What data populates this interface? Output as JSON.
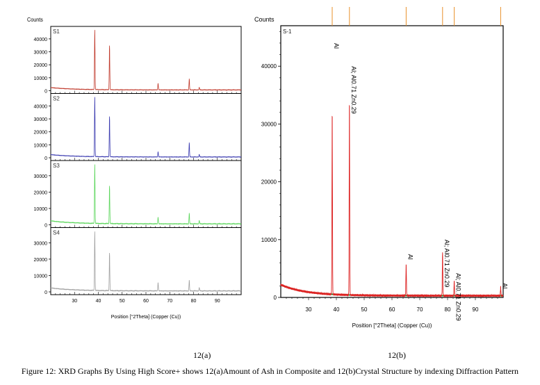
{
  "figure": {
    "caption": "Figure 12: XRD Graphs By Using High Score+ shows 12(a)Amount of Ash in Composite  and 12(b)Crystal Structure by indexing Diffraction Pattern",
    "sublabel_a": "12(a)",
    "sublabel_b": "12(b)"
  },
  "chart_data": [
    {
      "type": "line",
      "ylabel": "Counts",
      "xlabel": "Position [°2Theta] (Copper (Cu))",
      "xlim": [
        20,
        100
      ],
      "x_ticks": [
        30,
        40,
        50,
        60,
        70,
        80,
        90
      ],
      "panels": [
        {
          "name": "S1",
          "color": "#c0392b",
          "ylim": [
            0,
            48000
          ],
          "y_ticks": [
            0,
            10000,
            20000,
            30000,
            40000
          ],
          "peaks": [
            [
              38.5,
              46000
            ],
            [
              44.7,
              34000
            ],
            [
              65.1,
              5000
            ],
            [
              78.2,
              8500
            ],
            [
              82.4,
              2000
            ]
          ]
        },
        {
          "name": "S2",
          "color": "#3b3bb0",
          "ylim": [
            0,
            48000
          ],
          "y_ticks": [
            0,
            10000,
            20000,
            30000,
            40000
          ],
          "peaks": [
            [
              38.5,
              46000
            ],
            [
              44.7,
              31000
            ],
            [
              65.1,
              4000
            ],
            [
              78.2,
              11000
            ],
            [
              82.4,
              2000
            ]
          ]
        },
        {
          "name": "S3",
          "color": "#5cd65c",
          "ylim": [
            0,
            38000
          ],
          "y_ticks": [
            0,
            10000,
            20000,
            30000
          ],
          "peaks": [
            [
              38.5,
              36000
            ],
            [
              44.7,
              23000
            ],
            [
              65.1,
              4000
            ],
            [
              78.2,
              6500
            ],
            [
              82.4,
              2000
            ]
          ]
        },
        {
          "name": "S4",
          "color": "#a0a0a0",
          "ylim": [
            0,
            38000
          ],
          "y_ticks": [
            0,
            10000,
            20000,
            30000
          ],
          "peaks": [
            [
              38.5,
              36000
            ],
            [
              44.7,
              23000
            ],
            [
              65.1,
              5000
            ],
            [
              78.2,
              6500
            ],
            [
              82.4,
              2000
            ]
          ]
        }
      ]
    },
    {
      "type": "line",
      "ylabel": "Counts",
      "xlabel": "Position [°2Theta] (Copper (Cu))",
      "sample_label": "S-1",
      "xlim": [
        20,
        100
      ],
      "ylim": [
        0,
        47000
      ],
      "x_ticks": [
        30,
        40,
        50,
        60,
        70,
        80,
        90
      ],
      "y_ticks": [
        0,
        10000,
        20000,
        30000,
        40000
      ],
      "colors": {
        "observed": "#dd2222",
        "background": "#2e8b2e",
        "reference": "#e8902a"
      },
      "peaks": [
        [
          38.5,
          31500
        ],
        [
          44.7,
          33500
        ],
        [
          65.1,
          5500
        ],
        [
          78.2,
          7500
        ],
        [
          82.4,
          2500
        ],
        [
          99.1,
          1500
        ]
      ],
      "reference_lines": [
        38.5,
        44.7,
        65.1,
        78.2,
        82.4,
        99.1
      ],
      "annotations": [
        {
          "x": 38.5,
          "y": 44000,
          "text": "Al"
        },
        {
          "x": 44.7,
          "y": 40000,
          "text": "Al; Al0.71 Zn0.29"
        },
        {
          "x": 65.1,
          "y": 7500,
          "text": "Al"
        },
        {
          "x": 78.2,
          "y": 10000,
          "text": "Al; Al0.71 Zn0.29"
        },
        {
          "x": 82.4,
          "y": 4200,
          "text": "Al; Al0.71 Zn0.29"
        },
        {
          "x": 99.1,
          "y": 2500,
          "text": "Al"
        }
      ]
    }
  ]
}
